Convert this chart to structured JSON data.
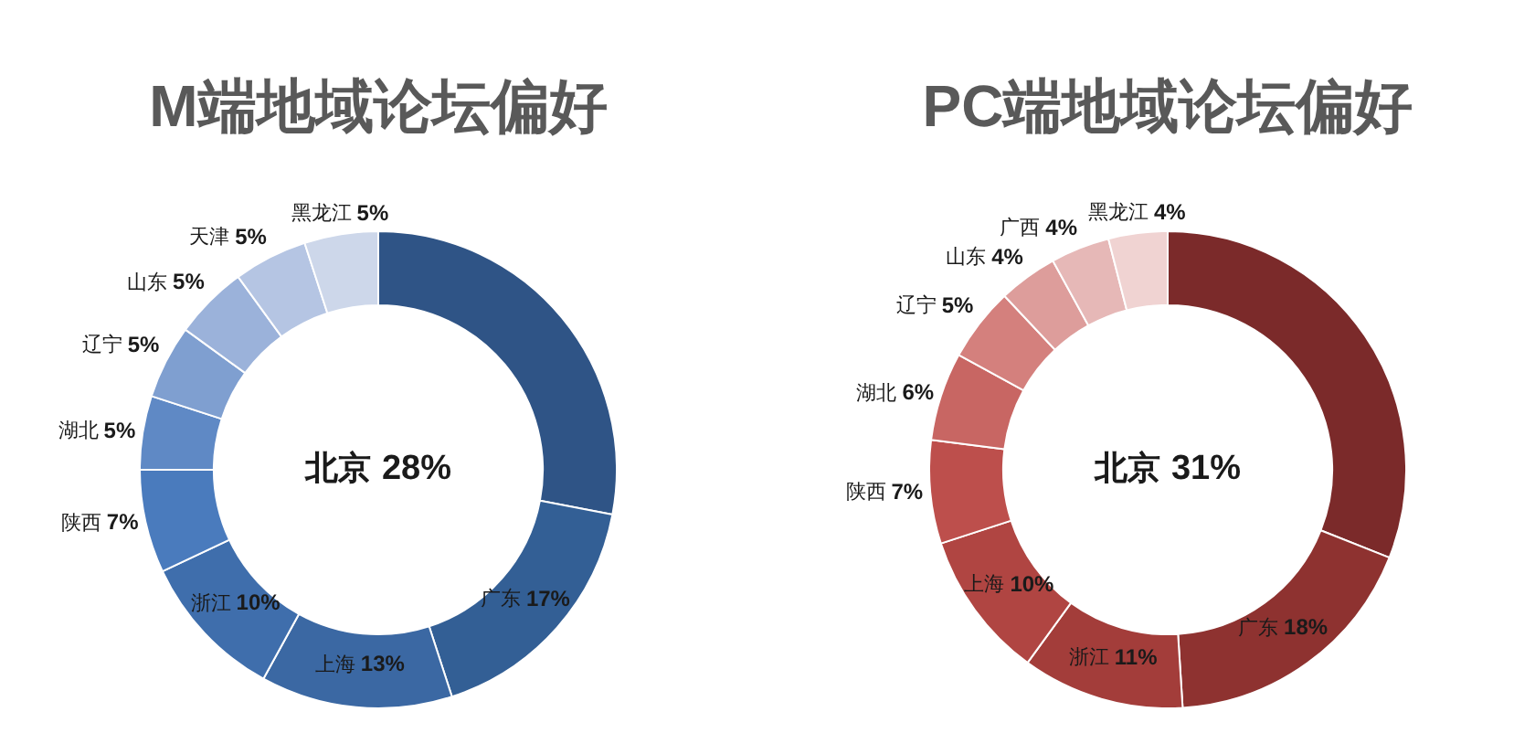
{
  "chart_data": [
    {
      "type": "donut",
      "title": "M端地域论坛偏好",
      "categories": [
        "北京",
        "广东",
        "上海",
        "浙江",
        "陕西",
        "湖北",
        "辽宁",
        "山东",
        "天津",
        "黑龙江"
      ],
      "values": [
        28,
        17,
        13,
        10,
        7,
        5,
        5,
        5,
        5,
        5
      ],
      "value_labels": [
        "28%",
        "17%",
        "13%",
        "10%",
        "7%",
        "5%",
        "5%",
        "5%",
        "5%",
        "5%"
      ],
      "colors": [
        "#2f5486",
        "#335f95",
        "#3b68a3",
        "#3f6eac",
        "#4a7bbd",
        "#5f89c5",
        "#7f9fd0",
        "#9bb2da",
        "#b5c5e3",
        "#cdd7ea"
      ]
    },
    {
      "type": "donut",
      "title": "PC端地域论坛偏好",
      "categories": [
        "北京",
        "广东",
        "浙江",
        "上海",
        "陕西",
        "湖北",
        "辽宁",
        "山东",
        "广西",
        "黑龙江"
      ],
      "values": [
        31,
        18,
        11,
        10,
        7,
        6,
        5,
        4,
        4,
        4
      ],
      "value_labels": [
        "31%",
        "18%",
        "11%",
        "10%",
        "7%",
        "6%",
        "5%",
        "4%",
        "4%",
        "4%"
      ],
      "colors": [
        "#7b2a2a",
        "#8e3230",
        "#a33d3a",
        "#b04542",
        "#bd4f4c",
        "#c86663",
        "#d4807d",
        "#dd9d9b",
        "#e6b8b7",
        "#f0d3d2"
      ]
    }
  ]
}
